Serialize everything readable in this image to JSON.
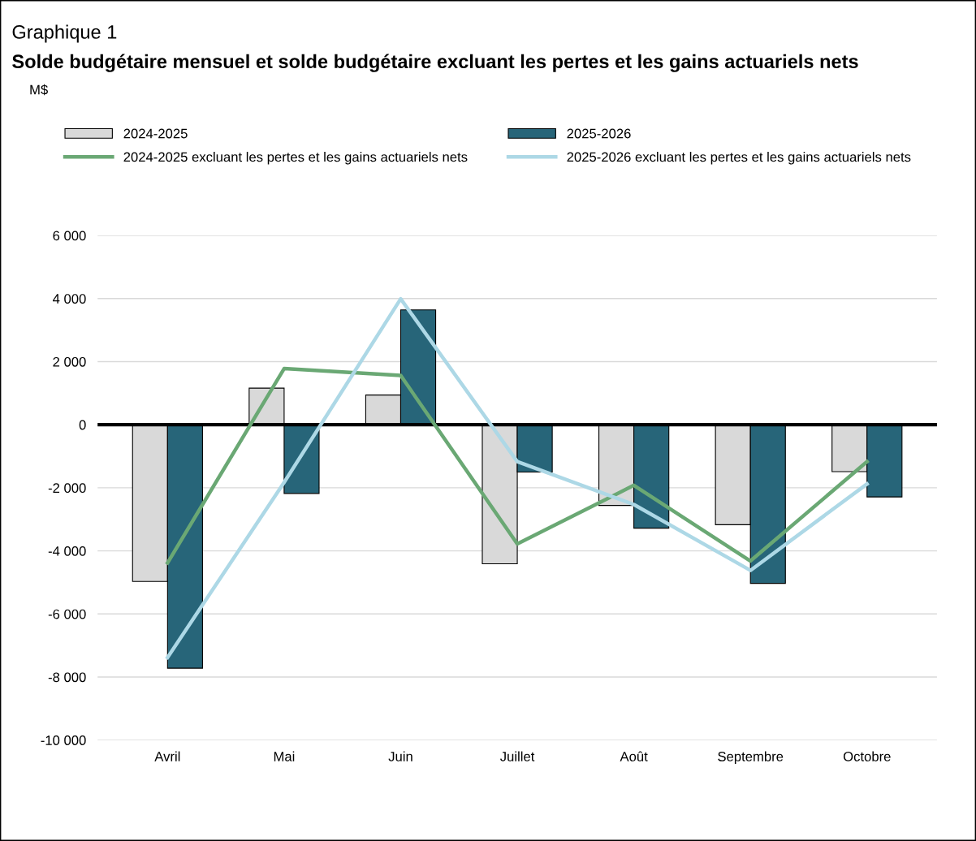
{
  "chart_data": {
    "type": "bar",
    "title": "Solde budgétaire mensuel et solde budgétaire excluant les pertes et les gains actuariels nets",
    "subtitle": "Graphique 1",
    "annotations": [
      "M$"
    ],
    "categories": [
      "Avril",
      "Mai",
      "Juin",
      "Juillet",
      "Août",
      "Septembre",
      "Octobre"
    ],
    "series": [
      {
        "name": "2024-2025",
        "color": "#d9d9d9",
        "values": [
          -4970,
          1160,
          940,
          -4410,
          -2560,
          -3170,
          -1490
        ]
      },
      {
        "name": "2025-2026",
        "color": "#276579",
        "values": [
          -7720,
          -2180,
          3640,
          -1500,
          -3280,
          -5030,
          -2290
        ]
      },
      {
        "name": "2024-2025 excluant les pertes et les gains actuariels nets",
        "type": "line",
        "color": "#6aa874",
        "values": [
          -4380,
          1780,
          1560,
          -3780,
          -1920,
          -4320,
          -1170
        ]
      },
      {
        "name": "2025-2026 excluant les pertes et les gains actuariels nets",
        "type": "line",
        "color": "#add8e6",
        "values": [
          -7380,
          -1830,
          3990,
          -1170,
          -2530,
          -4620,
          -1880
        ]
      }
    ],
    "ylim": [
      -10000,
      6000
    ],
    "yticks": [
      {
        "value": -10000,
        "label": "-10 000"
      },
      {
        "value": -8000,
        "label": "-8 000"
      },
      {
        "value": -6000,
        "label": "-6 000"
      },
      {
        "value": -4000,
        "label": "-4 000"
      },
      {
        "value": -2000,
        "label": "-2 000"
      },
      0,
      {
        "value": 2000,
        "label": "2 000"
      },
      {
        "value": 4000,
        "label": "4 000"
      },
      {
        "value": 6000,
        "label": "6 000"
      }
    ],
    "ref_lines": [
      {
        "axis": "y",
        "value": 0,
        "color": "#000000"
      }
    ],
    "grid": "y",
    "legend": "top",
    "marker": "none",
    "line_style": "solid"
  }
}
